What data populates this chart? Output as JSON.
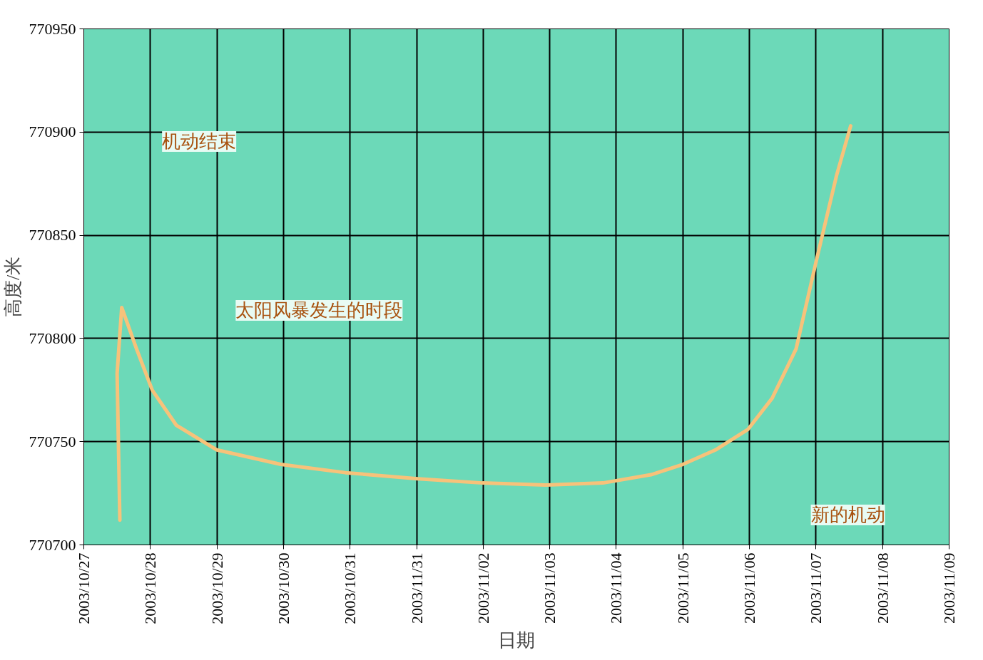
{
  "chart_data": {
    "type": "line",
    "xlabel": "日期",
    "ylabel": "高度/米",
    "x": [
      "2003-10-27T13:00",
      "2003-10-27T12:00",
      "2003-10-27T13:40",
      "2003-10-27T19:00",
      "2003-10-28T00:40",
      "2003-10-28T09:20",
      "2003-10-29T00:00",
      "2003-10-29T23:00",
      "2003-10-30T22:20",
      "2003-11-01T00:30",
      "2003-11-01T23:45",
      "2003-11-02T22:50",
      "2003-11-03T19:10",
      "2003-11-04T12:30",
      "2003-11-05T00:00",
      "2003-11-05T11:45",
      "2003-11-05T23:30",
      "2003-11-06T08:10",
      "2003-11-06T16:50",
      "2003-11-07T00:00",
      "2003-11-07T07:25",
      "2003-11-07T12:30"
    ],
    "series": [
      {
        "color": "#f7c27a",
        "values": [
          770712,
          770783,
          770815,
          770795,
          770775,
          770758,
          770746,
          770739,
          770735,
          770732,
          770730,
          770729,
          770730,
          770734,
          770739,
          770746,
          770756,
          770771,
          770795,
          770837,
          770879,
          770903
        ]
      }
    ],
    "xlim": [
      "2003-10-27",
      "2003-11-09"
    ],
    "xticks": [
      {
        "value": "2003-10-27",
        "label": "2003/10/27"
      },
      {
        "value": "2003-10-28",
        "label": "2003/10/28"
      },
      {
        "value": "2003-10-29",
        "label": "2003/10/29"
      },
      {
        "value": "2003-10-30",
        "label": "2003/10/30"
      },
      {
        "value": "2003-10-31",
        "label": "2003/10/31"
      },
      {
        "value": "2003-11-01",
        "label": "2003/11/31"
      },
      {
        "value": "2003-11-02",
        "label": "2003/11/02"
      },
      {
        "value": "2003-11-03",
        "label": "2003/11/03"
      },
      {
        "value": "2003-11-04",
        "label": "2003/11/04"
      },
      {
        "value": "2003-11-05",
        "label": "2003/11/05"
      },
      {
        "value": "2003-11-06",
        "label": "2003/11/06"
      },
      {
        "value": "2003-11-07",
        "label": "2003/11/07"
      },
      {
        "value": "2003-11-08",
        "label": "2003/11/08"
      },
      {
        "value": "2003-11-09",
        "label": "2003/11/09"
      }
    ],
    "ylim": [
      770700,
      770950
    ],
    "yticks": [
      770700,
      770750,
      770800,
      770850,
      770900,
      770950
    ],
    "grid": true,
    "marker": "none",
    "line_style": "solid",
    "annotations": [
      "机动结束",
      "太阳风暴发生的时段",
      "新的机动"
    ]
  }
}
